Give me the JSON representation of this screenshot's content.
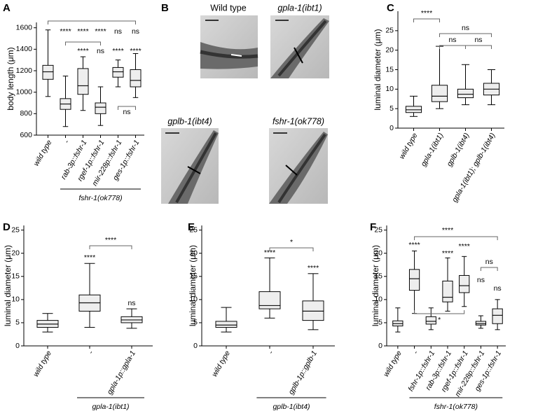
{
  "chart_data": [
    {
      "type": "box",
      "label": "A",
      "y_label": "body length (μm)",
      "categories": [
        "wild type",
        "-",
        "rab-3p::fshr-1",
        "rgef-1p::fshr-1",
        "mir-228p::fshr-1",
        "ges-1p::fshr-1"
      ],
      "group_label": "fshr-1(ok778)",
      "boxes": {
        "min": [
          960,
          680,
          830,
          690,
          1050,
          950
        ],
        "q1": [
          1120,
          840,
          980,
          800,
          1140,
          1050
        ],
        "median": [
          1190,
          890,
          1060,
          860,
          1190,
          1110
        ],
        "q3": [
          1250,
          940,
          1220,
          900,
          1230,
          1210
        ],
        "max": [
          1580,
          1150,
          1330,
          1050,
          1300,
          1360
        ]
      },
      "color": "#8c8c8c",
      "ylim": [
        600,
        1650
      ],
      "yticks": [
        600,
        800,
        1000,
        1200,
        1400,
        1600
      ],
      "annotations": [
        "****",
        "****",
        "****",
        "ns",
        "ns",
        "****",
        "ns",
        "****",
        "****",
        "ns"
      ]
    },
    {
      "type": "box",
      "label": "C",
      "y_label": "luminal diameter (μm)",
      "categories": [
        "wild type",
        "gpla-1(ibt1)",
        "gplb-1(ibt4)",
        "gpla-1(ibt1); gplb-1(ibt4)"
      ],
      "boxes": {
        "min": [
          3,
          5,
          6,
          6
        ],
        "q1": [
          4,
          6.8,
          7.8,
          8.5
        ],
        "median": [
          4.7,
          8.2,
          8.7,
          10
        ],
        "q3": [
          5.6,
          11,
          10,
          11.5
        ],
        "max": [
          8.2,
          21,
          16.3,
          15
        ]
      },
      "color": "#8c8c8c",
      "ylim": [
        0,
        30
      ],
      "yticks": [
        0,
        5,
        10,
        15,
        20,
        25
      ],
      "annotations": [
        "****",
        "ns",
        "ns",
        "ns"
      ]
    },
    {
      "type": "box",
      "label": "D",
      "y_label": "luminal diameter (μm)",
      "categories": [
        "wild type",
        "-",
        "gpla-1p::gpla-1"
      ],
      "group_label": "gpla-1(ibt1)",
      "boxes": {
        "min": [
          3,
          4,
          3.8
        ],
        "q1": [
          4,
          7.5,
          5
        ],
        "median": [
          4.7,
          9.3,
          5.6
        ],
        "q3": [
          5.5,
          11,
          6.3
        ],
        "max": [
          7,
          17.8,
          8
        ]
      },
      "color": "#8c8c8c",
      "ylim": [
        0,
        26
      ],
      "yticks": [
        0,
        5,
        10,
        15,
        20,
        25
      ],
      "annotations": [
        "****",
        "****",
        "ns"
      ]
    },
    {
      "type": "box",
      "label": "E",
      "y_label": "luminal diameter (μm)",
      "categories": [
        "wild type",
        "-",
        "gplb-1p::gplb-1"
      ],
      "group_label": "gplb-1(ibt4)",
      "boxes": {
        "min": [
          3,
          6,
          3.5
        ],
        "q1": [
          4,
          8,
          5.5
        ],
        "median": [
          4.5,
          8.7,
          7.5
        ],
        "q3": [
          5.3,
          11.7,
          9.7
        ],
        "max": [
          8.3,
          19,
          15.6
        ]
      },
      "color": "#8c8c8c",
      "ylim": [
        0,
        26
      ],
      "yticks": [
        0,
        5,
        10,
        15,
        20,
        25
      ],
      "annotations": [
        "****",
        "*",
        "****"
      ]
    },
    {
      "type": "box",
      "label": "F",
      "y_label": "luminal diameter (μm)",
      "categories": [
        "wild type",
        "-",
        "fshr-1p::fshr-1",
        "rab-3p::fshr-1",
        "rgef-1p::fshr-1",
        "mir-228p::fshr-1",
        "ges-1p::fshr-1"
      ],
      "group_label": "fshr-1(ok778)",
      "boxes": {
        "min": [
          3,
          7,
          3.5,
          7.5,
          8.5,
          3.8,
          3.5
        ],
        "q1": [
          4.3,
          12,
          4.7,
          9.5,
          11.5,
          4.5,
          4.8
        ],
        "median": [
          4.8,
          14.5,
          5.3,
          10.5,
          13,
          4.8,
          6.6
        ],
        "q3": [
          5.4,
          16.5,
          6.3,
          14,
          15.2,
          5.3,
          8
        ],
        "max": [
          8.2,
          20.5,
          8.2,
          19,
          19.3,
          6.5,
          10
        ]
      },
      "color": "#8c8c8c",
      "ylim": [
        0,
        26
      ],
      "yticks": [
        0,
        5,
        10,
        15,
        20,
        25
      ],
      "annotations": [
        "****",
        "****",
        "****",
        "****",
        "ns",
        "ns",
        "ns",
        "*"
      ]
    }
  ],
  "panel_b": {
    "label": "B",
    "images": [
      "Wild type",
      "gpla-1(ibt1)",
      "gplb-1(ibt4)",
      "fshr-1(ok778)"
    ]
  }
}
